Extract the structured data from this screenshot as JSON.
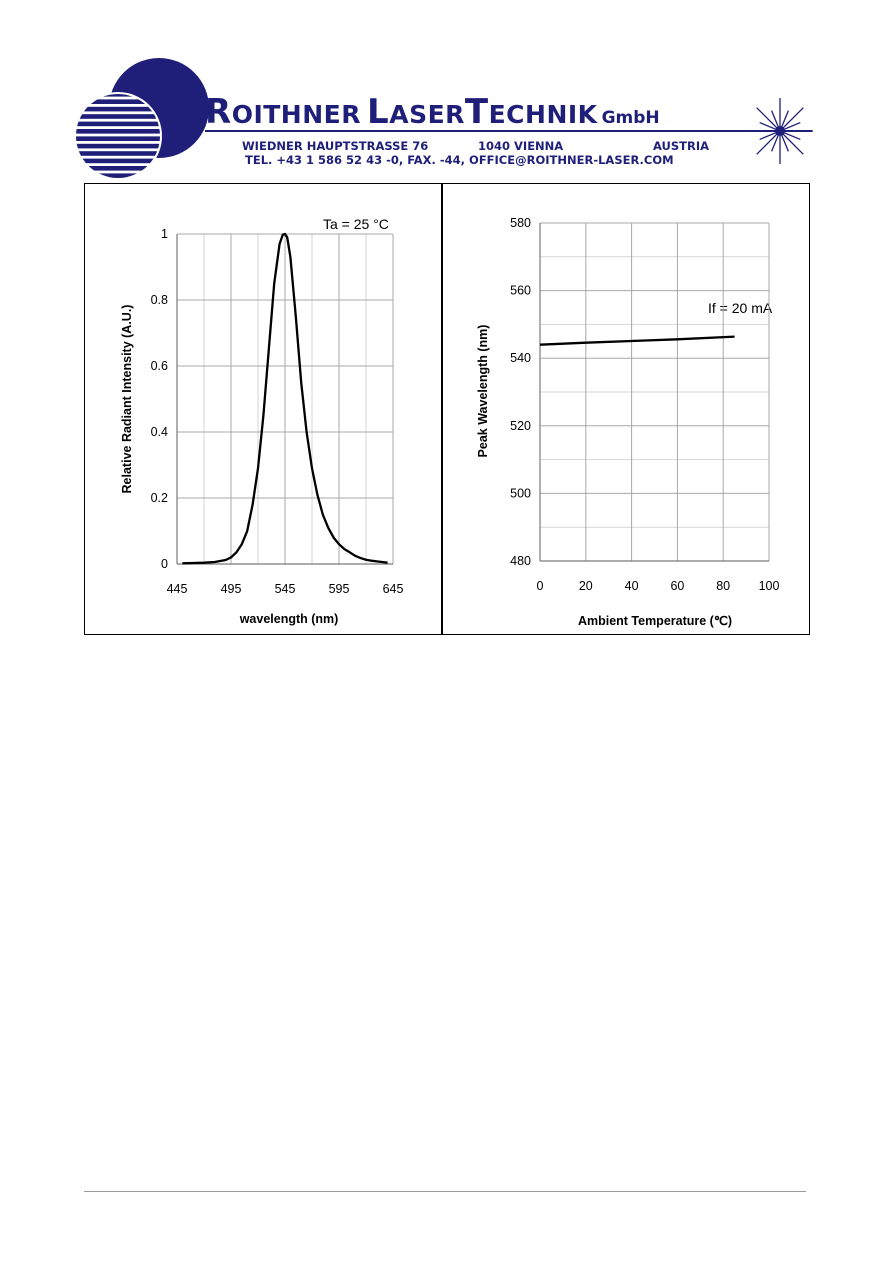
{
  "header": {
    "company": {
      "w1_initial": "R",
      "w1_rest": "OITHNER",
      "w2_initial": "L",
      "w2_rest": "ASER",
      "w3_initial": "T",
      "w3_rest": "ECHNIK",
      "suffix": "GmbH"
    },
    "street": "WIEDNER HAUPTSTRASSE 76",
    "city": "1040 VIENNA",
    "country": "AUSTRIA",
    "contact": "TEL. +43 1 586 52 43 -0, FAX. -44, OFFICE@ROITHNER-LASER.COM",
    "brand_color": "#1f1f7a",
    "logo_icon": "striped-globe-icon",
    "star_icon": "laser-starburst-icon"
  },
  "chart_data": [
    {
      "type": "line",
      "title": "",
      "xlabel": "wavelength (nm)",
      "ylabel": "Relative Radiant Intensity (A.U.)",
      "annotation": "Ta = 25 °C",
      "xlim": [
        445,
        645
      ],
      "ylim": [
        0,
        1
      ],
      "xticks": [
        445,
        495,
        545,
        595,
        645
      ],
      "xtick_labels": [
        "445",
        "495",
        "545",
        "595",
        "645"
      ],
      "yticks": [
        0,
        0.2,
        0.4,
        0.6,
        0.8,
        1
      ],
      "ytick_labels": [
        "0",
        "0.2",
        "0.4",
        "0.6",
        "0.8",
        "1"
      ],
      "grid": true,
      "series": [
        {
          "x": [
            450,
            460,
            470,
            480,
            490,
            495,
            500,
            505,
            510,
            515,
            520,
            525,
            530,
            535,
            540,
            543,
            545,
            547,
            550,
            555,
            560,
            565,
            570,
            575,
            580,
            585,
            590,
            595,
            600,
            605,
            610,
            615,
            620,
            625,
            630,
            635,
            640
          ],
          "y": [
            0.002,
            0.003,
            0.004,
            0.006,
            0.012,
            0.02,
            0.035,
            0.06,
            0.1,
            0.18,
            0.29,
            0.45,
            0.65,
            0.85,
            0.97,
            0.998,
            1.0,
            0.99,
            0.93,
            0.75,
            0.55,
            0.4,
            0.29,
            0.21,
            0.15,
            0.11,
            0.08,
            0.06,
            0.045,
            0.035,
            0.025,
            0.018,
            0.013,
            0.01,
            0.008,
            0.006,
            0.004
          ]
        }
      ]
    },
    {
      "type": "line",
      "title": "",
      "xlabel": "Ambient Temperature (℃)",
      "ylabel": "Peak Wavelength (nm)",
      "annotation": "If = 20 mA",
      "xlim": [
        0,
        100
      ],
      "ylim": [
        480,
        580
      ],
      "xticks": [
        0,
        20,
        40,
        60,
        80,
        100
      ],
      "xtick_labels": [
        "0",
        "20",
        "40",
        "60",
        "80",
        "100"
      ],
      "yticks": [
        480,
        500,
        520,
        540,
        560,
        580
      ],
      "ytick_labels": [
        "480",
        "500",
        "520",
        "540",
        "560",
        "580"
      ],
      "grid": true,
      "series": [
        {
          "x": [
            0,
            20,
            40,
            60,
            85
          ],
          "y": [
            544,
            544.6,
            545.1,
            545.6,
            546.4
          ]
        }
      ]
    }
  ]
}
